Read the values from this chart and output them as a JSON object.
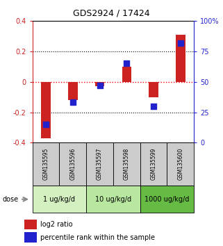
{
  "title": "GDS2924 / 17424",
  "samples": [
    "GSM135595",
    "GSM135596",
    "GSM135597",
    "GSM135598",
    "GSM135599",
    "GSM135600"
  ],
  "log2_ratio": [
    -0.37,
    -0.12,
    -0.03,
    0.1,
    -0.1,
    0.31
  ],
  "percentile_rank": [
    15,
    33,
    47,
    65,
    30,
    82
  ],
  "dose_groups": [
    {
      "label": "1 ug/kg/d",
      "samples_idx": [
        0,
        1
      ],
      "color": "#d4f0c0"
    },
    {
      "label": "10 ug/kg/d",
      "samples_idx": [
        2,
        3
      ],
      "color": "#b8e8a0"
    },
    {
      "label": "1000 ug/kg/d",
      "samples_idx": [
        4,
        5
      ],
      "color": "#66bb44"
    }
  ],
  "bar_color": "#cc2222",
  "point_color": "#2222cc",
  "ylim_left": [
    -0.4,
    0.4
  ],
  "ylim_right": [
    0,
    100
  ],
  "yticks_left": [
    -0.4,
    -0.2,
    0.0,
    0.2,
    0.4
  ],
  "yticks_right": [
    0,
    25,
    50,
    75,
    100
  ],
  "hlines": [
    -0.2,
    0.0,
    0.2
  ],
  "hline_colors": [
    "black",
    "red",
    "black"
  ],
  "left_axis_color": "#cc2222",
  "right_axis_color": "#2222cc",
  "bg_color": "#ffffff",
  "plot_bg_color": "#ffffff",
  "sample_area_color": "#cccccc",
  "dose_label": "dose",
  "legend_log2": "log2 ratio",
  "legend_pct": "percentile rank within the sample",
  "bar_width": 0.35,
  "point_size": 28,
  "title_fontsize": 9,
  "tick_fontsize": 7,
  "sample_fontsize": 5.5,
  "dose_fontsize": 7,
  "legend_fontsize": 7
}
